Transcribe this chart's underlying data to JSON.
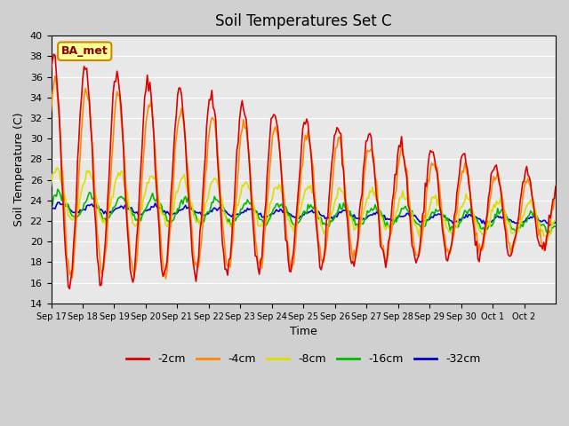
{
  "title": "Soil Temperatures Set C",
  "xlabel": "Time",
  "ylabel": "Soil Temperature (C)",
  "ylim": [
    14,
    40
  ],
  "yticks": [
    14,
    16,
    18,
    20,
    22,
    24,
    26,
    28,
    30,
    32,
    34,
    36,
    38,
    40
  ],
  "fig_bg": "#d0d0d0",
  "ax_bg": "#e8e8e8",
  "annotation_text": "BA_met",
  "annotation_bg": "#ffff99",
  "annotation_border": "#cc8800",
  "colors": {
    "-2cm": "#dd0000",
    "-4cm": "#ff8800",
    "-8cm": "#dddd00",
    "-16cm": "#00bb00",
    "-32cm": "#0000cc"
  },
  "legend_labels": [
    "-2cm",
    "-4cm",
    "-8cm",
    "-16cm",
    "-32cm"
  ],
  "x_tick_labels": [
    "Sep 17",
    "Sep 18",
    "Sep 19",
    "Sep 20",
    "Sep 21",
    "Sep 22",
    "Sep 23",
    "Sep 24",
    "Sep 25",
    "Sep 26",
    "Sep 27",
    "Sep 28",
    "Sep 29",
    "Sep 30",
    "Oct 1",
    "Oct 2"
  ],
  "line_width": 1.2,
  "days": 16,
  "pts_per_day": 24
}
